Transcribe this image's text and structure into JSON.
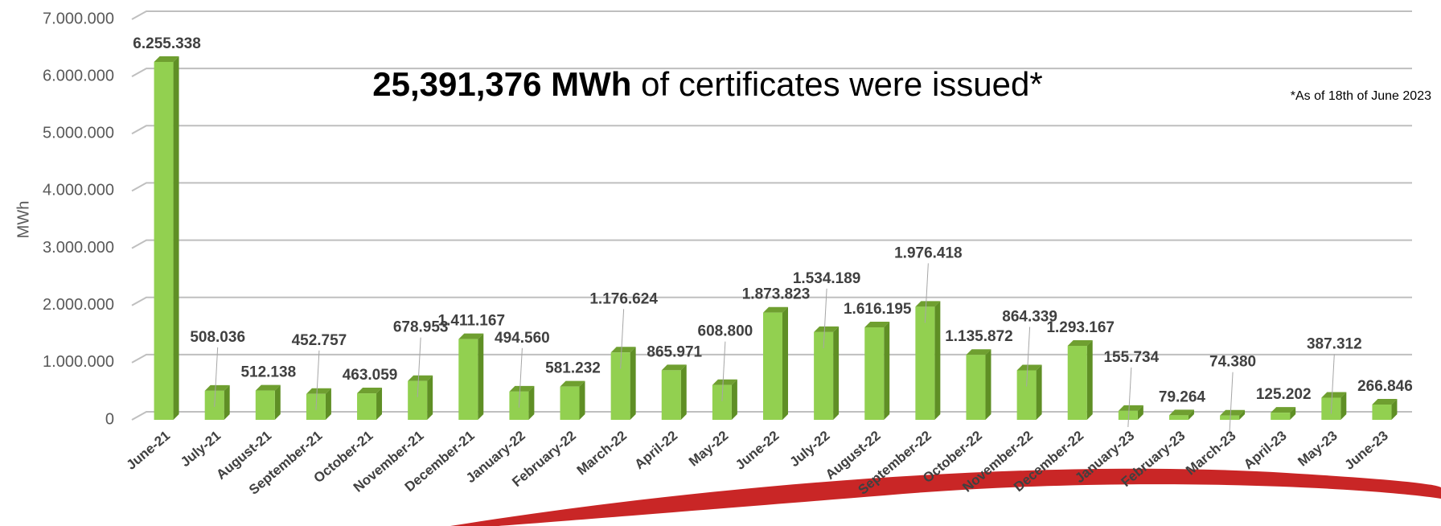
{
  "chart_data": {
    "type": "bar",
    "title_emphasis": "25,391,376 MWh",
    "title": "of certificates were issued*",
    "annotation": "*As of 18th of June 2023",
    "y_label": "MWh",
    "categories": [
      "June-21",
      "July-21",
      "August-21",
      "September-21",
      "October-21",
      "November-21",
      "December-21",
      "January-22",
      "February-22",
      "March-22",
      "April-22",
      "May-22",
      "June-22",
      "July-22",
      "August-22",
      "September-22",
      "October-22",
      "November-22",
      "December-22",
      "January-23",
      "February-23",
      "March-23",
      "April-23",
      "May-23",
      "June-23"
    ],
    "values": [
      6255338,
      508036,
      512138,
      452757,
      463059,
      678953,
      1411167,
      494560,
      581232,
      1176624,
      865971,
      608800,
      1873823,
      1534189,
      1616195,
      1976418,
      1135872,
      864339,
      1293167,
      155734,
      79264,
      74380,
      125202,
      387312,
      266846
    ],
    "value_labels": [
      "6.255.338",
      "508.036",
      "512.138",
      "452.757",
      "463.059",
      "678.953",
      "1.411.167",
      "494.560",
      "581.232",
      "1.176.624",
      "865.971",
      "608.800",
      "1.873.823",
      "1.534.189",
      "1.616.195",
      "1.976.418",
      "1.135.872",
      "864.339",
      "1.293.167",
      "155.734",
      "79.264",
      "74.380",
      "125.202",
      "387.312",
      "266.846"
    ],
    "color": "#92d050",
    "ylim": [
      0,
      7000000
    ],
    "yticks": [
      0,
      {
        "value": 1000000,
        "label": "1.000.000"
      },
      {
        "value": 2000000,
        "label": "2.000.000"
      },
      {
        "value": 3000000,
        "label": "3.000.000"
      },
      {
        "value": 4000000,
        "label": "4.000.000"
      },
      {
        "value": 5000000,
        "label": "5.000.000"
      },
      {
        "value": 6000000,
        "label": "6.000.000"
      },
      {
        "value": 7000000,
        "label": "7.000.000"
      }
    ],
    "grid": true
  }
}
